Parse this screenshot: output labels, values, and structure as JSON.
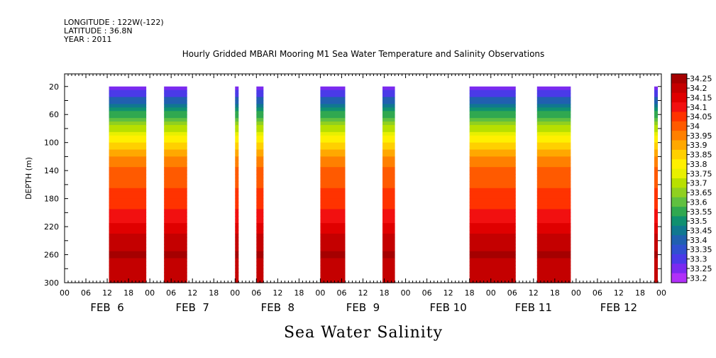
{
  "header": {
    "longitude": "LONGITUDE : 122W(-122)",
    "latitude": "LATITUDE : 36.8N",
    "year": "YEAR : 2011"
  },
  "chart_data": {
    "type": "heatmap",
    "title": "Hourly Gridded MBARI Mooring M1 Sea Water Temperature and Salinity Observations",
    "variable_label": "Sea Water Salinity",
    "ylabel": "DEPTH (m)",
    "ylim": [
      300,
      0
    ],
    "y_reversed": true,
    "y_ticks": [
      20,
      60,
      100,
      140,
      180,
      220,
      260,
      300
    ],
    "x_units": "hours since 2011-02-06 00:00",
    "xlim": [
      0,
      168
    ],
    "x_tick_labels": [
      "00",
      "06",
      "12",
      "18",
      "00",
      "06",
      "12",
      "18",
      "00",
      "06",
      "12",
      "18",
      "00",
      "06",
      "12",
      "18",
      "00",
      "06",
      "12",
      "18",
      "00",
      "06",
      "12",
      "18",
      "00",
      "06",
      "12",
      "18",
      "00"
    ],
    "day_labels": [
      "FEB  6",
      "FEB  7",
      "FEB  8",
      "FEB  9",
      "FEB 10",
      "FEB 11",
      "FEB 12"
    ],
    "colorbar": {
      "levels": [
        "34.25",
        "34.2",
        "34.15",
        "34.1",
        "34.05",
        "34",
        "33.95",
        "33.9",
        "33.85",
        "33.8",
        "33.75",
        "33.7",
        "33.65",
        "33.6",
        "33.55",
        "33.5",
        "33.45",
        "33.4",
        "33.35",
        "33.3",
        "33.25",
        "33.2"
      ],
      "colors": [
        "#a50000",
        "#c40000",
        "#e00000",
        "#f21010",
        "#ff3300",
        "#ff5a00",
        "#ff8000",
        "#ffa800",
        "#ffd000",
        "#fff000",
        "#e8f000",
        "#b8e000",
        "#90d020",
        "#60c040",
        "#30a850",
        "#109070",
        "#107890",
        "#2060b0",
        "#3050d0",
        "#4a3ae8",
        "#7a2af0",
        "#b030f8"
      ]
    },
    "segments": [
      {
        "start": 12.5,
        "end": 23.0
      },
      {
        "start": 28.0,
        "end": 34.5
      },
      {
        "start": 48.0,
        "end": 49.0
      },
      {
        "start": 54.0,
        "end": 56.0
      },
      {
        "start": 72.0,
        "end": 79.0
      },
      {
        "start": 89.5,
        "end": 93.0
      },
      {
        "start": 114.0,
        "end": 127.0
      },
      {
        "start": 133.0,
        "end": 142.5
      },
      {
        "start": 166.0,
        "end": 167.0
      }
    ],
    "profile": [
      {
        "depth": 20,
        "value": 33.22
      },
      {
        "depth": 30,
        "value": 33.3
      },
      {
        "depth": 40,
        "value": 33.4
      },
      {
        "depth": 50,
        "value": 33.48
      },
      {
        "depth": 60,
        "value": 33.55
      },
      {
        "depth": 70,
        "value": 33.62
      },
      {
        "depth": 80,
        "value": 33.7
      },
      {
        "depth": 90,
        "value": 33.76
      },
      {
        "depth": 100,
        "value": 33.82
      },
      {
        "depth": 110,
        "value": 33.88
      },
      {
        "depth": 120,
        "value": 33.92
      },
      {
        "depth": 130,
        "value": 33.96
      },
      {
        "depth": 140,
        "value": 34.0
      },
      {
        "depth": 160,
        "value": 34.02
      },
      {
        "depth": 180,
        "value": 34.05
      },
      {
        "depth": 200,
        "value": 34.08
      },
      {
        "depth": 220,
        "value": 34.14
      },
      {
        "depth": 240,
        "value": 34.2
      },
      {
        "depth": 260,
        "value": 34.23
      },
      {
        "depth": 280,
        "value": 34.2
      },
      {
        "depth": 300,
        "value": 34.18
      }
    ]
  }
}
